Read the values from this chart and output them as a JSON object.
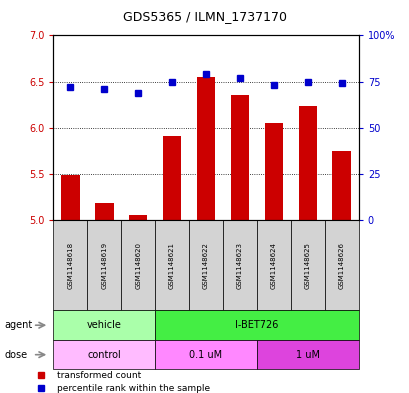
{
  "title": "GDS5365 / ILMN_1737170",
  "samples": [
    "GSM1148618",
    "GSM1148619",
    "GSM1148620",
    "GSM1148621",
    "GSM1148622",
    "GSM1148623",
    "GSM1148624",
    "GSM1148625",
    "GSM1148626"
  ],
  "transformed_count": [
    5.49,
    5.19,
    5.05,
    5.91,
    6.55,
    6.35,
    6.05,
    6.24,
    5.75
  ],
  "percentile_rank": [
    72,
    71,
    69,
    75,
    79,
    77,
    73,
    75,
    74
  ],
  "ylim_left": [
    5.0,
    7.0
  ],
  "yticks_left": [
    5.0,
    5.5,
    6.0,
    6.5,
    7.0
  ],
  "yticks_right": [
    0,
    25,
    50,
    75,
    100
  ],
  "ytick_labels_right": [
    "0",
    "25",
    "50",
    "75",
    "100%"
  ],
  "bar_color": "#cc0000",
  "point_color": "#0000cc",
  "agent_groups": [
    {
      "label": "vehicle",
      "start": 0,
      "end": 3,
      "color": "#aaffaa"
    },
    {
      "label": "I-BET726",
      "start": 3,
      "end": 9,
      "color": "#44ee44"
    }
  ],
  "dose_groups": [
    {
      "label": "control",
      "start": 0,
      "end": 3,
      "color": "#ffbbff"
    },
    {
      "label": "0.1 uM",
      "start": 3,
      "end": 6,
      "color": "#ff88ff"
    },
    {
      "label": "1 uM",
      "start": 6,
      "end": 9,
      "color": "#dd44dd"
    }
  ],
  "legend_items": [
    {
      "color": "#cc0000",
      "label": "transformed count"
    },
    {
      "color": "#0000cc",
      "label": "percentile rank within the sample"
    }
  ],
  "left_tick_color": "#cc0000",
  "right_tick_color": "#0000cc",
  "gsm_bg_color": "#d3d3d3",
  "title_fontsize": 9,
  "tick_fontsize": 7,
  "sample_fontsize": 5,
  "legend_fontsize": 6.5,
  "row_label_fontsize": 7,
  "row_content_fontsize": 7
}
